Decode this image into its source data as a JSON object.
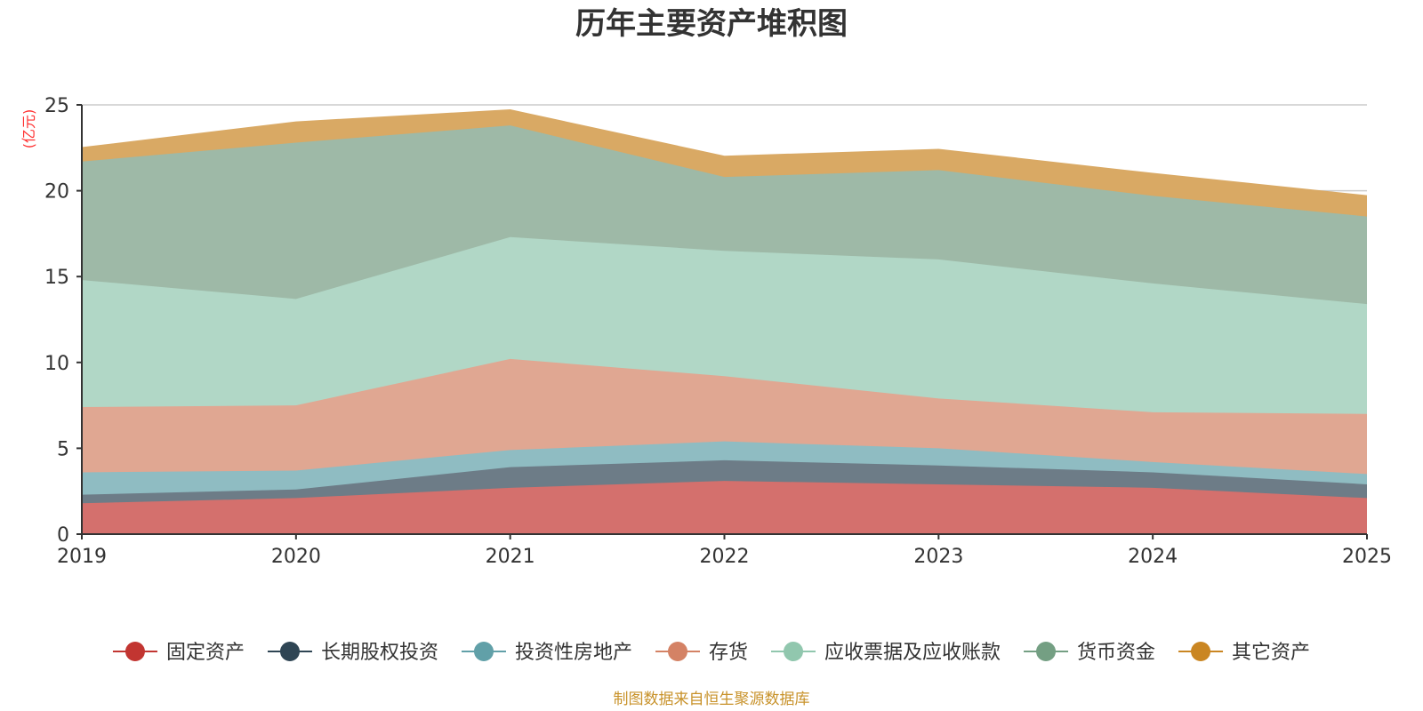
{
  "chart_data": {
    "type": "area",
    "stacked": true,
    "title": "历年主要资产堆积图",
    "unit": "(亿元)",
    "x": [
      "2019",
      "2020",
      "2021",
      "2022",
      "2023",
      "2024",
      "2025"
    ],
    "ylim": [
      0,
      25
    ],
    "yticks": [
      0,
      5,
      10,
      15,
      20,
      25
    ],
    "grid": true,
    "legend_position": "bottom",
    "series": [
      {
        "name": "固定资产",
        "color": "#c23531",
        "fill": "#d4706d",
        "values": [
          1.8,
          2.1,
          2.7,
          3.1,
          2.9,
          2.7,
          2.1
        ]
      },
      {
        "name": "长期股权投资",
        "color": "#2f4554",
        "fill": "#6d7c87",
        "values": [
          0.5,
          0.5,
          1.2,
          1.2,
          1.1,
          0.9,
          0.8
        ]
      },
      {
        "name": "投资性房地产",
        "color": "#61a0a8",
        "fill": "#8fbcc2",
        "values": [
          1.3,
          1.1,
          1.0,
          1.1,
          1.0,
          0.6,
          0.6
        ]
      },
      {
        "name": "存货",
        "color": "#d48265",
        "fill": "#e0a792",
        "values": [
          3.8,
          3.8,
          5.3,
          3.8,
          2.9,
          2.9,
          3.5
        ]
      },
      {
        "name": "应收票据及应收账款",
        "color": "#91c7ae",
        "fill": "#b1d7c6",
        "values": [
          7.4,
          6.2,
          7.1,
          7.3,
          8.1,
          7.5,
          6.4
        ]
      },
      {
        "name": "货币资金",
        "color": "#749f83",
        "fill": "#9eb9a7",
        "values": [
          6.9,
          9.1,
          6.5,
          4.3,
          5.2,
          5.1,
          5.1
        ]
      },
      {
        "name": "其它资产",
        "color": "#ca8622",
        "fill": "#d9a964",
        "values": [
          0.8,
          1.2,
          0.9,
          1.2,
          1.2,
          1.3,
          1.2
        ]
      }
    ]
  },
  "source_note": "制图数据来自恒生聚源数据库",
  "colors": {
    "axis": "#333333",
    "grid": "#cccccc",
    "unit_label": "#ff3030",
    "source_note": "#c8922a"
  }
}
